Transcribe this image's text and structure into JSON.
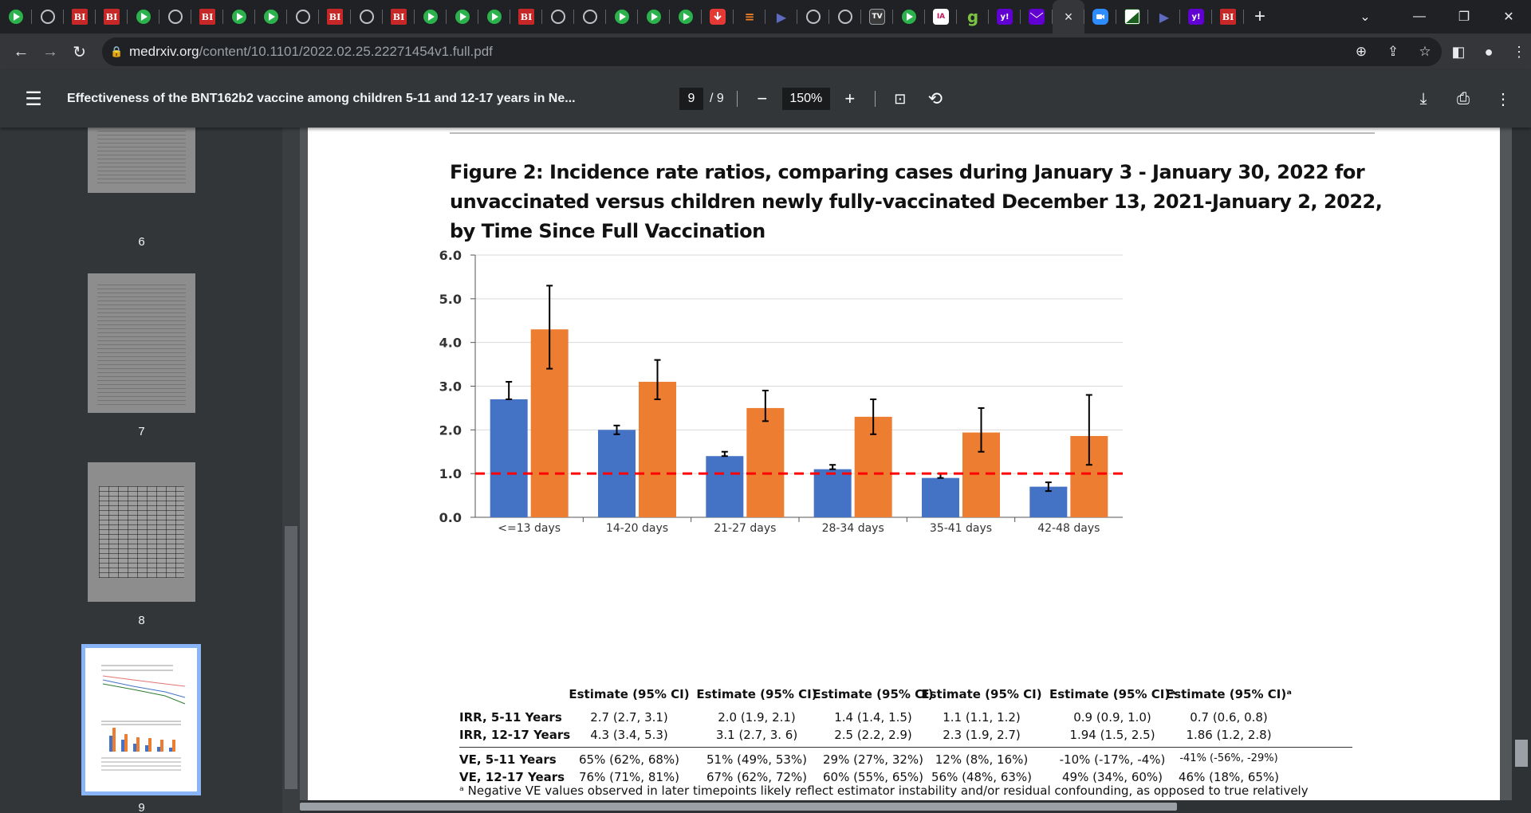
{
  "browser": {
    "tabs": [
      {
        "icon": "play-icon",
        "type": "play"
      },
      {
        "icon": "globe-icon",
        "type": "globe"
      },
      {
        "icon": "bi-icon",
        "type": "bi",
        "text": "BI"
      },
      {
        "icon": "bi-icon",
        "type": "bi",
        "text": "BI"
      },
      {
        "icon": "play-icon",
        "type": "play"
      },
      {
        "icon": "globe-icon",
        "type": "globe"
      },
      {
        "icon": "bi-icon",
        "type": "bi",
        "text": "BI"
      },
      {
        "icon": "play-icon",
        "type": "play"
      },
      {
        "icon": "play-icon",
        "type": "play"
      },
      {
        "icon": "globe-icon",
        "type": "globe"
      },
      {
        "icon": "bi-icon",
        "type": "bi",
        "text": "BI"
      },
      {
        "icon": "globe-icon",
        "type": "globe"
      },
      {
        "icon": "bi-icon",
        "type": "bi",
        "text": "BI"
      },
      {
        "icon": "play-icon",
        "type": "play"
      },
      {
        "icon": "play-icon",
        "type": "play"
      },
      {
        "icon": "play-icon",
        "type": "play"
      },
      {
        "icon": "bi-icon",
        "type": "bi",
        "text": "BI"
      },
      {
        "icon": "globe-icon",
        "type": "globe"
      },
      {
        "icon": "globe-icon",
        "type": "globe"
      },
      {
        "icon": "play-icon",
        "type": "play"
      },
      {
        "icon": "play-icon",
        "type": "play"
      },
      {
        "icon": "play-icon",
        "type": "play"
      },
      {
        "icon": "download-red-icon",
        "type": "red"
      },
      {
        "icon": "stack-icon",
        "type": "stack",
        "text": "≡"
      },
      {
        "icon": "arrow-icon",
        "type": "arrow",
        "text": "▶"
      },
      {
        "icon": "globe-icon",
        "type": "globe"
      },
      {
        "icon": "globe-icon",
        "type": "globe"
      },
      {
        "icon": "tv-icon",
        "type": "tv",
        "text": "TV"
      },
      {
        "icon": "play-icon",
        "type": "play"
      },
      {
        "icon": "ia-icon",
        "type": "ia",
        "text": "IA"
      },
      {
        "icon": "g-icon",
        "type": "g",
        "text": "g"
      },
      {
        "icon": "yahoo-icon",
        "type": "yahoo",
        "text": "y!"
      },
      {
        "icon": "mail-icon",
        "type": "mail"
      }
    ],
    "active_tab_close": "×",
    "tabs_after": [
      {
        "icon": "zoom-icon",
        "type": "zoom"
      },
      {
        "icon": "cam-icon",
        "type": "cam"
      },
      {
        "icon": "arrow-icon",
        "type": "arrow",
        "text": "▶"
      },
      {
        "icon": "yahoo-icon",
        "type": "yahoo",
        "text": "y!"
      },
      {
        "icon": "bi-icon",
        "type": "bi",
        "text": "BI"
      }
    ],
    "new_tab": "+",
    "url_host": "medrxiv.org",
    "url_path": "/content/10.1101/2022.02.25.22271454v1.full.pdf"
  },
  "pdf": {
    "title": "Effectiveness of the BNT162b2 vaccine among children 5-11 and 12-17 years in Ne...",
    "page_current": "9",
    "page_total": "/  9",
    "zoom": "150%",
    "thumb_labels": [
      "6",
      "7",
      "8",
      "9"
    ]
  },
  "figure": {
    "title": "Figure 2:  Incidence rate ratios, comparing cases during January 3 - January 30, 2022 for unvaccinated versus children newly fully-vaccinated December 13, 2021-January 2, 2022, by Time Since Full Vaccination"
  },
  "chart_data": {
    "type": "bar",
    "categories": [
      "<=13 days",
      "14-20 days",
      "21-27 days",
      "28-34 days",
      "35-41 days",
      "42-48 days"
    ],
    "series": [
      {
        "name": "IRR, 5-11 Years",
        "color": "#4472c4",
        "values": [
          2.7,
          2.0,
          1.4,
          1.1,
          0.9,
          0.7
        ],
        "ci_low": [
          2.7,
          1.9,
          1.4,
          1.1,
          0.9,
          0.6
        ],
        "ci_high": [
          3.1,
          2.1,
          1.5,
          1.2,
          1.0,
          0.8
        ]
      },
      {
        "name": "IRR, 12-17 Years",
        "color": "#ed7d31",
        "values": [
          4.3,
          3.1,
          2.5,
          2.3,
          1.94,
          1.86
        ],
        "ci_low": [
          3.4,
          2.7,
          2.2,
          1.9,
          1.5,
          1.2
        ],
        "ci_high": [
          5.3,
          3.6,
          2.9,
          2.7,
          2.5,
          2.8
        ]
      }
    ],
    "yticks": [
      "0.0",
      "1.0",
      "2.0",
      "3.0",
      "4.0",
      "5.0",
      "6.0"
    ],
    "ylim": [
      0,
      6
    ],
    "reference_line": 1.0,
    "reference_color": "#ff0000"
  },
  "table": {
    "headers": [
      "Estimate (95% CI)",
      "Estimate (95% CI)",
      "Estimate (95% CI)",
      "Estimate (95% CI)",
      "Estimate (95% CI)ᵃ",
      "Estimate (95% CI)ᵃ"
    ],
    "rows": [
      {
        "label": "IRR, 5-11 Years",
        "cells": [
          "2.7 (2.7, 3.1)",
          "2.0 (1.9, 2.1)",
          "1.4 (1.4, 1.5)",
          "1.1 (1.1, 1.2)",
          "0.9 (0.9, 1.0)",
          "0.7 (0.6, 0.8)"
        ]
      },
      {
        "label": "IRR, 12-17 Years",
        "cells": [
          "4.3 (3.4, 5.3)",
          "3.1 (2.7, 3. 6)",
          "2.5 (2.2, 2.9)",
          "2.3 (1.9, 2.7)",
          "1.94 (1.5, 2.5)",
          "1.86 (1.2, 2.8)"
        ]
      },
      {
        "label": "VE, 5-11 Years",
        "cells": [
          "65% (62%, 68%)",
          "51% (49%, 53%)",
          "29% (27%, 32%)",
          "12% (8%, 16%)",
          "-10% (-17%, -4%)",
          "-41% (-56%, -29%)"
        ]
      },
      {
        "label": "VE, 12-17 Years",
        "cells": [
          "76% (71%, 81%)",
          "67% (62%, 72%)",
          "60% (55%, 65%)",
          "56% (48%, 63%)",
          "49% (34%, 60%)",
          "46% (18%, 65%)"
        ]
      }
    ],
    "footnote": "ᵃ Negative VE values observed in later timepoints likely reflect estimator instability and/or residual confounding, as opposed to true relatively"
  }
}
